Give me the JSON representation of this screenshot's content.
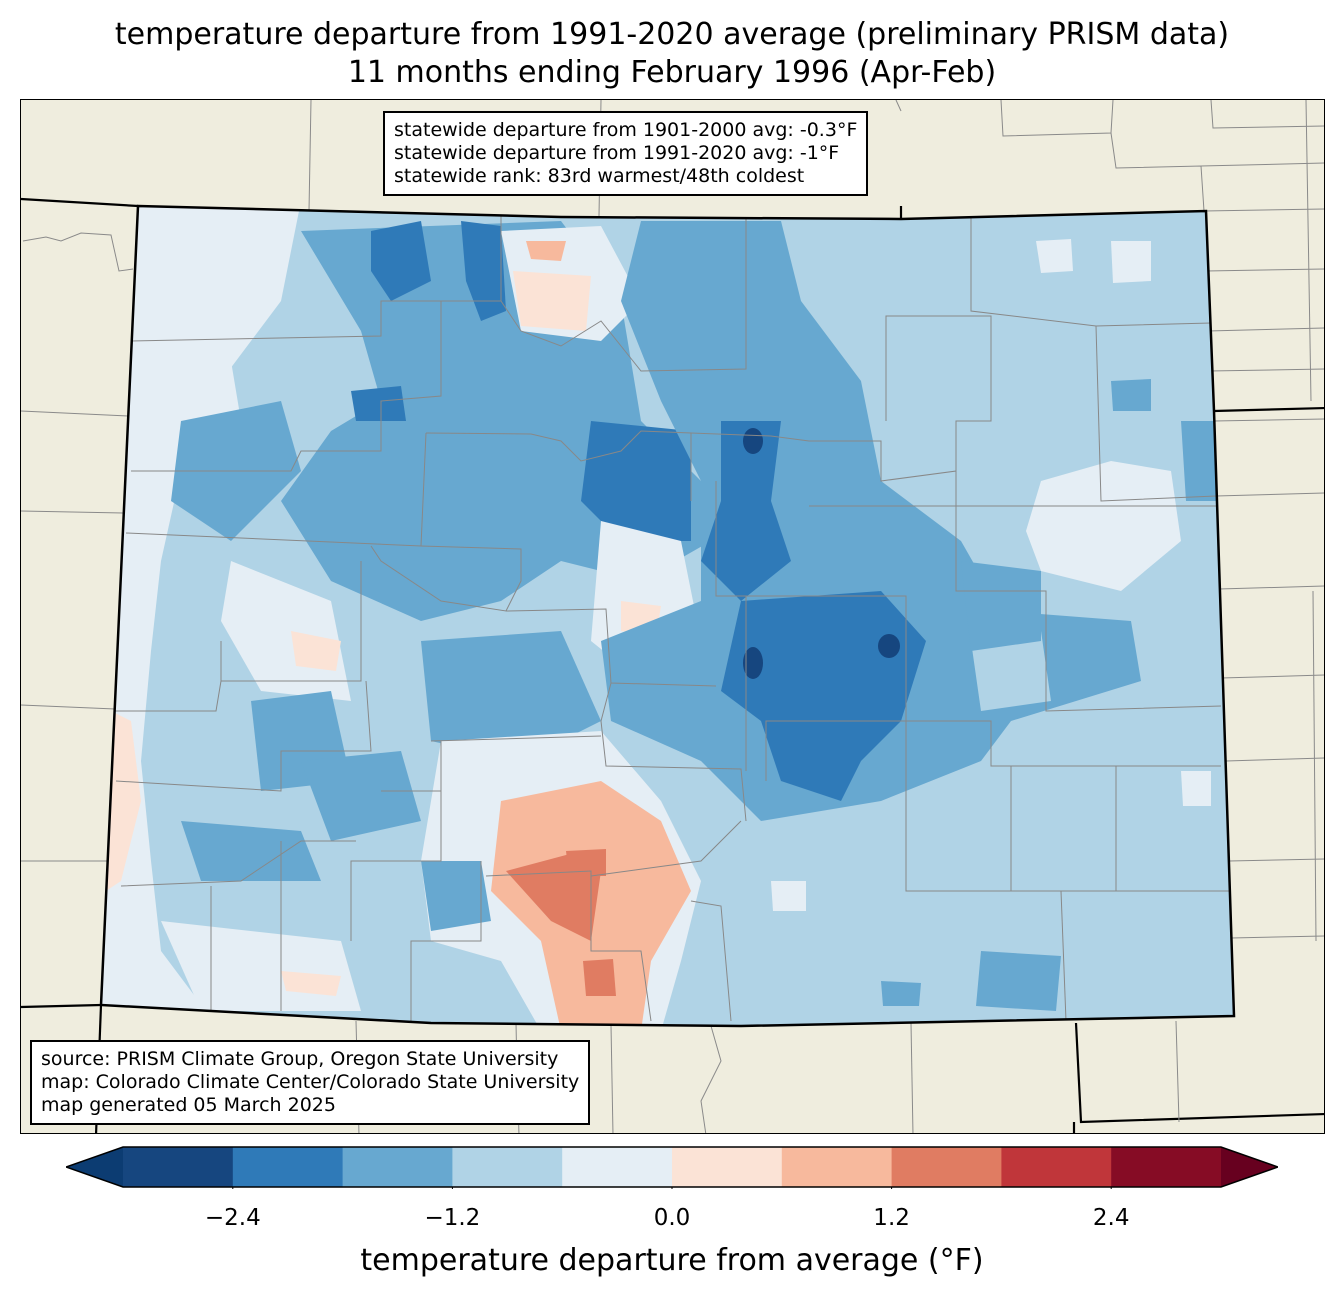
{
  "title": {
    "line1": "temperature departure from 1991-2020 average (preliminary PRISM data)",
    "line2": "11 months ending February 1996 (Apr-Feb)"
  },
  "stats_box": {
    "line1": "statewide departure from 1901-2000 avg: -0.3°F",
    "line2": "statewide departure from 1991-2020 avg: -1°F",
    "line3": "statewide rank: 83rd warmest/48th coldest"
  },
  "source_box": {
    "line1": "source: PRISM Climate Group, Oregon State University",
    "line2": "map: Colorado Climate Center/Colorado State University",
    "line3": "map generated 05 March 2025"
  },
  "colorbar": {
    "label": "temperature departure from average (°F)",
    "bins": [
      -3.0,
      -2.4,
      -1.8,
      -1.2,
      -0.6,
      0.0,
      0.6,
      1.2,
      1.8,
      2.4,
      3.0
    ],
    "colors": [
      "#0c3c72",
      "#16467f",
      "#2f7ab8",
      "#67a8d0",
      "#b0d3e6",
      "#e5eef5",
      "#fbe3d6",
      "#f7b99d",
      "#e07c62",
      "#c0363a",
      "#860c25",
      "#67001f"
    ],
    "ticks": [
      {
        "value": -2.4,
        "label": "−2.4"
      },
      {
        "value": -1.2,
        "label": "−1.2"
      },
      {
        "value": 0.0,
        "label": "0.0"
      },
      {
        "value": 1.2,
        "label": "1.2"
      },
      {
        "value": 2.4,
        "label": "2.4"
      }
    ]
  },
  "map": {
    "land_outside_color": "#efedde",
    "state_border_color": "#000000",
    "county_line_color": "#888888"
  }
}
